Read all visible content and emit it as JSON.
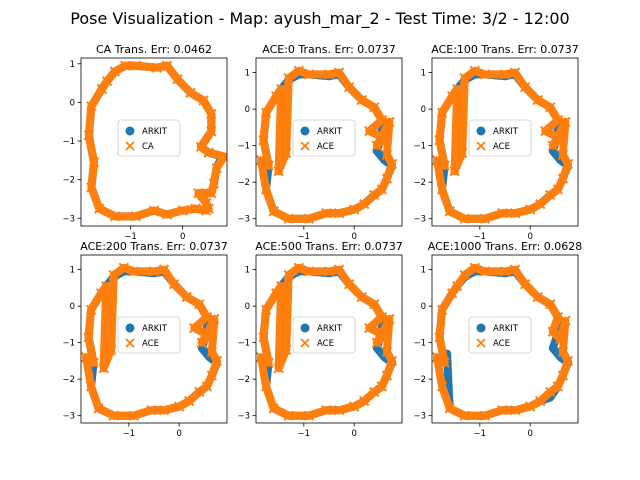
{
  "figure": {
    "title": "Pose Visualization - Map: ayush_mar_2 - Test Time: 3/2 - 12:00"
  },
  "colors": {
    "arkit": "#1f77b4",
    "pred": "#ff7f0e"
  },
  "chart_data": [
    {
      "type": "scatter",
      "title": "CA Trans. Err: 0.0462",
      "xlim": [
        -1.95,
        0.85
      ],
      "ylim": [
        -3.2,
        1.15
      ],
      "xticks": [
        -1,
        0
      ],
      "yticks": [
        1,
        0,
        -1,
        -2,
        -3
      ],
      "legend": {
        "position": "center",
        "entries": [
          "ARKIT",
          "CA"
        ]
      },
      "series": [
        {
          "name": "ARKIT",
          "marker": "circle",
          "color": "#1f77b4",
          "x": [
            -1.3,
            -1.1,
            -0.9,
            -0.5,
            -0.3,
            -0.1,
            0.15,
            0.4,
            0.55,
            0.55,
            0.35,
            0.5,
            0.75,
            0.65,
            0.6,
            0.55,
            0.3,
            0.45,
            0.5,
            0.45,
            0.25,
            0.0,
            -0.3,
            -0.55,
            -0.9,
            -1.3,
            -1.6,
            -1.75,
            -1.7,
            -1.8,
            -1.75,
            -1.55,
            -1.45
          ],
          "y": [
            0.8,
            0.95,
            0.95,
            0.9,
            0.95,
            0.6,
            0.25,
            0.05,
            -0.3,
            -0.75,
            -1.15,
            -1.3,
            -1.4,
            -1.7,
            -2.1,
            -2.35,
            -2.35,
            -2.6,
            -2.75,
            -2.8,
            -2.75,
            -2.8,
            -2.9,
            -2.8,
            -2.95,
            -2.95,
            -2.75,
            -2.2,
            -1.55,
            -0.85,
            -0.1,
            0.35,
            0.55
          ]
        },
        {
          "name": "CA",
          "marker": "x",
          "color": "#ff7f0e",
          "x": [
            -1.3,
            -1.1,
            -0.9,
            -0.5,
            -0.3,
            -0.1,
            0.15,
            0.4,
            0.55,
            0.55,
            0.35,
            0.5,
            0.8,
            0.65,
            0.6,
            0.55,
            0.3,
            0.45,
            0.5,
            0.45,
            0.25,
            0.0,
            -0.3,
            -0.55,
            -0.9,
            -1.3,
            -1.6,
            -1.75,
            -1.7,
            -1.8,
            -1.75,
            -1.55,
            -1.45
          ],
          "y": [
            0.8,
            0.95,
            0.95,
            0.9,
            0.95,
            0.6,
            0.25,
            0.05,
            -0.3,
            -0.75,
            -1.15,
            -1.3,
            -1.4,
            -1.7,
            -2.1,
            -2.35,
            -2.35,
            -2.6,
            -2.75,
            -2.8,
            -2.75,
            -2.8,
            -2.9,
            -2.8,
            -2.95,
            -2.95,
            -2.75,
            -2.2,
            -1.55,
            -0.85,
            -0.1,
            0.35,
            0.55
          ]
        }
      ]
    },
    {
      "type": "scatter",
      "title": "ACE:0 Trans. Err: 0.0737",
      "xlim": [
        -1.95,
        0.95
      ],
      "ylim": [
        -3.2,
        1.4
      ],
      "xticks": [
        -1,
        0
      ],
      "yticks": [
        1,
        0,
        -1,
        -2,
        -3
      ],
      "legend": {
        "position": "center",
        "entries": [
          "ARKIT",
          "ACE"
        ]
      },
      "series": [
        {
          "name": "ARKIT",
          "marker": "circle",
          "color": "#1f77b4",
          "x": [
            -1.3,
            -1.1,
            -0.9,
            -0.5,
            -0.3,
            -0.1,
            0.15,
            0.4,
            0.55,
            0.55,
            0.45,
            0.6,
            0.75,
            0.65,
            0.55,
            0.4,
            0.2,
            0.0,
            -0.3,
            -0.55,
            -0.9,
            -1.3,
            -1.6,
            -1.75,
            -1.7,
            -1.8,
            -1.75,
            -1.55,
            -1.45
          ],
          "y": [
            0.8,
            0.95,
            0.95,
            0.9,
            0.95,
            0.6,
            0.25,
            0.05,
            -0.3,
            -0.75,
            -1.15,
            -1.4,
            -1.55,
            -1.9,
            -2.2,
            -2.35,
            -2.6,
            -2.75,
            -2.85,
            -2.85,
            -3.0,
            -3.0,
            -2.8,
            -2.2,
            -1.55,
            -0.85,
            -0.1,
            0.35,
            0.55
          ]
        },
        {
          "name": "ACE",
          "marker": "x",
          "color": "#ff7f0e",
          "x": [
            -1.3,
            -1.1,
            -0.9,
            -0.5,
            -0.3,
            -0.1,
            0.15,
            0.4,
            0.55,
            0.3,
            0.6,
            0.45,
            0.7,
            0.65,
            0.75,
            0.65,
            0.55,
            0.4,
            0.2,
            0.0,
            -0.3,
            -0.55,
            -0.9,
            -1.3,
            -1.6,
            -1.75,
            -1.85,
            -1.7,
            -1.8,
            -1.75,
            -1.55,
            -1.45,
            -1.5,
            -1.35
          ],
          "y": [
            0.85,
            1.05,
            0.95,
            0.95,
            1.0,
            0.6,
            0.25,
            0.05,
            -0.3,
            -0.6,
            -0.8,
            -1.0,
            -0.35,
            -1.25,
            -1.5,
            -1.9,
            -2.2,
            -2.35,
            -2.6,
            -2.75,
            -2.85,
            -2.85,
            -3.0,
            -3.0,
            -2.8,
            -2.2,
            -1.4,
            -1.55,
            -0.85,
            -0.1,
            0.35,
            0.55,
            -1.7,
            -1.2
          ]
        }
      ]
    },
    {
      "type": "scatter",
      "title": "ACE:100 Trans. Err: 0.0737",
      "xlim": [
        -1.95,
        0.95
      ],
      "ylim": [
        -3.2,
        1.4
      ],
      "xticks": [
        -1,
        0
      ],
      "yticks": [
        1,
        0,
        -1,
        -2,
        -3
      ],
      "legend": {
        "position": "center",
        "entries": [
          "ARKIT",
          "ACE"
        ]
      },
      "series": [
        {
          "name": "ARKIT",
          "marker": "circle",
          "color": "#1f77b4",
          "x": [
            -1.3,
            -1.1,
            -0.9,
            -0.5,
            -0.3,
            -0.1,
            0.15,
            0.4,
            0.55,
            0.55,
            0.45,
            0.6,
            0.75,
            0.65,
            0.55,
            0.4,
            0.2,
            0.0,
            -0.3,
            -0.55,
            -0.9,
            -1.3,
            -1.6,
            -1.75,
            -1.7,
            -1.8,
            -1.75,
            -1.55,
            -1.45
          ],
          "y": [
            0.8,
            0.95,
            0.95,
            0.9,
            0.95,
            0.6,
            0.25,
            0.05,
            -0.3,
            -0.75,
            -1.15,
            -1.4,
            -1.55,
            -1.9,
            -2.2,
            -2.35,
            -2.6,
            -2.75,
            -2.85,
            -2.85,
            -3.0,
            -3.0,
            -2.8,
            -2.2,
            -1.55,
            -0.85,
            -0.1,
            0.35,
            0.55
          ]
        },
        {
          "name": "ACE",
          "marker": "x",
          "color": "#ff7f0e",
          "x": [
            -1.3,
            -1.1,
            -0.9,
            -0.5,
            -0.3,
            -0.1,
            0.15,
            0.4,
            0.55,
            0.3,
            0.6,
            0.45,
            0.7,
            0.65,
            0.75,
            0.65,
            0.55,
            0.4,
            0.2,
            0.0,
            -0.3,
            -0.55,
            -0.9,
            -1.3,
            -1.6,
            -1.75,
            -1.85,
            -1.7,
            -1.8,
            -1.75,
            -1.55,
            -1.45,
            -1.5,
            -1.35
          ],
          "y": [
            0.85,
            1.05,
            0.95,
            0.95,
            1.0,
            0.6,
            0.25,
            0.05,
            -0.3,
            -0.6,
            -0.8,
            -1.0,
            -0.35,
            -1.25,
            -1.5,
            -1.9,
            -2.2,
            -2.35,
            -2.6,
            -2.75,
            -2.85,
            -2.85,
            -3.0,
            -3.0,
            -2.8,
            -2.2,
            -1.4,
            -1.55,
            -0.85,
            -0.1,
            0.35,
            0.55,
            -1.7,
            -1.2
          ]
        }
      ]
    },
    {
      "type": "scatter",
      "title": "ACE:200 Trans. Err: 0.0737",
      "xlim": [
        -1.95,
        0.95
      ],
      "ylim": [
        -3.2,
        1.4
      ],
      "xticks": [
        -1,
        0
      ],
      "yticks": [
        1,
        0,
        -1,
        -2,
        -3
      ],
      "legend": {
        "position": "center",
        "entries": [
          "ARKIT",
          "ACE"
        ]
      },
      "series": [
        {
          "name": "ARKIT",
          "marker": "circle",
          "color": "#1f77b4",
          "x": [
            -1.3,
            -1.1,
            -0.9,
            -0.5,
            -0.3,
            -0.1,
            0.15,
            0.4,
            0.55,
            0.55,
            0.45,
            0.6,
            0.75,
            0.65,
            0.55,
            0.4,
            0.2,
            0.0,
            -0.3,
            -0.55,
            -0.9,
            -1.3,
            -1.6,
            -1.75,
            -1.7,
            -1.8,
            -1.75,
            -1.55,
            -1.45
          ],
          "y": [
            0.8,
            0.95,
            0.95,
            0.9,
            0.95,
            0.6,
            0.25,
            0.05,
            -0.3,
            -0.75,
            -1.15,
            -1.4,
            -1.55,
            -1.9,
            -2.2,
            -2.35,
            -2.6,
            -2.75,
            -2.85,
            -2.85,
            -3.0,
            -3.0,
            -2.8,
            -2.2,
            -1.55,
            -0.85,
            -0.1,
            0.35,
            0.55
          ]
        },
        {
          "name": "ACE",
          "marker": "x",
          "color": "#ff7f0e",
          "x": [
            -1.3,
            -1.1,
            -0.9,
            -0.5,
            -0.3,
            -0.1,
            0.15,
            0.4,
            0.55,
            0.3,
            0.6,
            0.45,
            0.7,
            0.65,
            0.75,
            0.65,
            0.55,
            0.4,
            0.2,
            0.0,
            -0.3,
            -0.55,
            -0.9,
            -1.3,
            -1.6,
            -1.75,
            -1.85,
            -1.7,
            -1.8,
            -1.75,
            -1.55,
            -1.45,
            -1.5,
            -1.35
          ],
          "y": [
            0.85,
            1.05,
            0.95,
            0.95,
            1.0,
            0.6,
            0.25,
            0.05,
            -0.3,
            -0.6,
            -0.8,
            -1.0,
            -0.35,
            -1.25,
            -1.5,
            -1.9,
            -2.2,
            -2.35,
            -2.6,
            -2.75,
            -2.85,
            -2.85,
            -3.0,
            -3.0,
            -2.8,
            -2.2,
            -1.4,
            -1.55,
            -0.85,
            -0.1,
            0.35,
            0.55,
            -1.7,
            -1.2
          ]
        }
      ]
    },
    {
      "type": "scatter",
      "title": "ACE:500 Trans. Err: 0.0737",
      "xlim": [
        -1.95,
        0.95
      ],
      "ylim": [
        -3.2,
        1.4
      ],
      "xticks": [
        -1,
        0
      ],
      "yticks": [
        1,
        0,
        -1,
        -2,
        -3
      ],
      "legend": {
        "position": "center",
        "entries": [
          "ARKIT",
          "ACE"
        ]
      },
      "series": [
        {
          "name": "ARKIT",
          "marker": "circle",
          "color": "#1f77b4",
          "x": [
            -1.3,
            -1.1,
            -0.9,
            -0.5,
            -0.3,
            -0.1,
            0.15,
            0.4,
            0.55,
            0.55,
            0.45,
            0.6,
            0.75,
            0.65,
            0.55,
            0.4,
            0.2,
            0.0,
            -0.3,
            -0.55,
            -0.9,
            -1.3,
            -1.6,
            -1.75,
            -1.7,
            -1.8,
            -1.75,
            -1.55,
            -1.45
          ],
          "y": [
            0.8,
            0.95,
            0.95,
            0.9,
            0.95,
            0.6,
            0.25,
            0.05,
            -0.3,
            -0.75,
            -1.15,
            -1.4,
            -1.55,
            -1.9,
            -2.2,
            -2.35,
            -2.6,
            -2.75,
            -2.85,
            -2.85,
            -3.0,
            -3.0,
            -2.8,
            -2.2,
            -1.55,
            -0.85,
            -0.1,
            0.35,
            0.55
          ]
        },
        {
          "name": "ACE",
          "marker": "x",
          "color": "#ff7f0e",
          "x": [
            -1.3,
            -1.1,
            -0.9,
            -0.5,
            -0.3,
            -0.1,
            0.15,
            0.4,
            0.55,
            0.3,
            0.6,
            0.45,
            0.7,
            0.65,
            0.75,
            0.65,
            0.55,
            0.4,
            0.2,
            0.0,
            -0.3,
            -0.55,
            -0.9,
            -1.3,
            -1.6,
            -1.75,
            -1.85,
            -1.7,
            -1.8,
            -1.75,
            -1.55,
            -1.45,
            -1.5,
            -1.35
          ],
          "y": [
            0.85,
            1.05,
            0.95,
            0.95,
            1.0,
            0.6,
            0.25,
            0.05,
            -0.3,
            -0.6,
            -0.8,
            -1.0,
            -0.35,
            -1.25,
            -1.5,
            -1.9,
            -2.2,
            -2.35,
            -2.6,
            -2.75,
            -2.85,
            -2.85,
            -3.0,
            -3.0,
            -2.8,
            -2.2,
            -1.4,
            -1.55,
            -0.85,
            -0.1,
            0.35,
            0.55,
            -1.7,
            -1.2
          ]
        }
      ]
    },
    {
      "type": "scatter",
      "title": "ACE:1000 Trans. Err: 0.0628",
      "xlim": [
        -1.95,
        0.95
      ],
      "ylim": [
        -3.2,
        1.4
      ],
      "xticks": [
        -1,
        0
      ],
      "yticks": [
        1,
        0,
        -1,
        -2,
        -3
      ],
      "legend": {
        "position": "center",
        "entries": [
          "ARKIT",
          "ACE"
        ]
      },
      "series": [
        {
          "name": "ARKIT",
          "marker": "circle",
          "color": "#1f77b4",
          "x": [
            -1.3,
            -1.1,
            -0.9,
            -0.5,
            -0.3,
            -0.1,
            0.15,
            0.4,
            0.55,
            0.55,
            0.45,
            0.6,
            0.75,
            0.65,
            0.55,
            0.4,
            0.2,
            0.0,
            -0.3,
            -0.55,
            -0.9,
            -1.3,
            -1.6,
            -1.65,
            -1.7,
            -1.8,
            -1.75,
            -1.55,
            -1.45
          ],
          "y": [
            0.8,
            0.95,
            0.95,
            0.9,
            0.95,
            0.6,
            0.25,
            0.05,
            -0.3,
            -0.75,
            -1.15,
            -1.4,
            -1.55,
            -1.9,
            -2.2,
            -2.5,
            -2.6,
            -2.75,
            -2.85,
            -2.85,
            -3.0,
            -3.0,
            -2.8,
            -1.3,
            -1.55,
            -0.85,
            -0.1,
            0.35,
            0.55
          ]
        },
        {
          "name": "ACE",
          "marker": "x",
          "color": "#ff7f0e",
          "x": [
            -1.3,
            -1.1,
            -0.9,
            -0.5,
            -0.3,
            -0.1,
            0.15,
            0.4,
            0.55,
            0.45,
            0.6,
            0.7,
            0.65,
            0.75,
            0.65,
            0.55,
            0.4,
            0.2,
            0.0,
            -0.3,
            -0.55,
            -0.9,
            -1.3,
            -1.6,
            -1.75,
            -1.85,
            -1.7,
            -1.8,
            -1.75,
            -1.55,
            -1.45
          ],
          "y": [
            0.85,
            1.05,
            0.95,
            0.95,
            1.0,
            0.6,
            0.25,
            0.05,
            -0.3,
            -0.7,
            -0.9,
            -0.4,
            -1.25,
            -1.5,
            -1.9,
            -2.2,
            -2.35,
            -2.6,
            -2.75,
            -2.85,
            -2.85,
            -3.0,
            -3.0,
            -2.8,
            -2.2,
            -1.4,
            -1.55,
            -0.85,
            -0.1,
            0.35,
            0.55
          ]
        }
      ]
    }
  ]
}
